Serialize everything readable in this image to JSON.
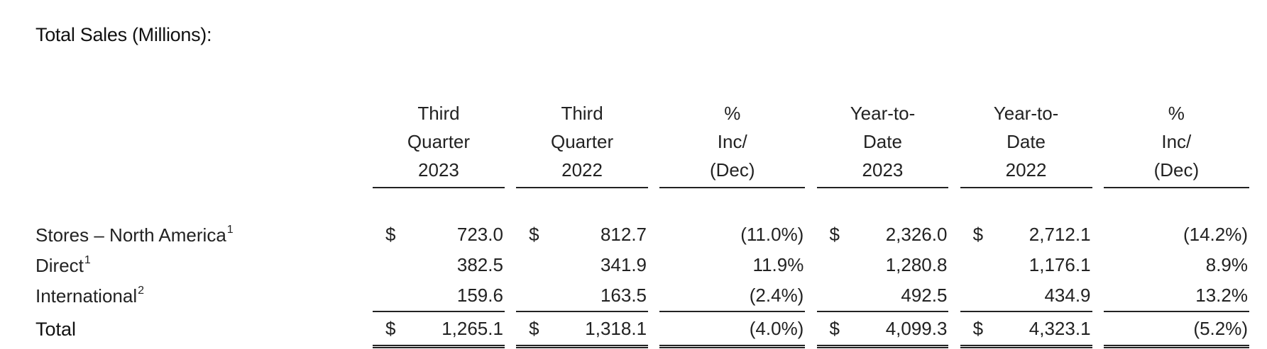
{
  "title": "Total Sales (Millions):",
  "columns": [
    {
      "line1": "Third",
      "line2": "Quarter",
      "line3": "2023"
    },
    {
      "line1": "Third",
      "line2": "Quarter",
      "line3": "2022"
    },
    {
      "line1": "%",
      "line2": "Inc/",
      "line3": "(Dec)"
    },
    {
      "line1": "Year-to-",
      "line2": "Date",
      "line3": "2023"
    },
    {
      "line1": "Year-to-",
      "line2": "Date",
      "line3": "2022"
    },
    {
      "line1": "%",
      "line2": "Inc/",
      "line3": "(Dec)"
    }
  ],
  "rows": [
    {
      "label": "Stores – North America",
      "footnote": "1",
      "dollar_q3_2023": "$",
      "q3_2023": "723.0",
      "dollar_q3_2022": "$",
      "q3_2022": "812.7",
      "q3_change": "(11.0%)",
      "dollar_ytd_2023": "$",
      "ytd_2023": "2,326.0",
      "dollar_ytd_2022": "$",
      "ytd_2022": "2,712.1",
      "ytd_change": "(14.2%)"
    },
    {
      "label": "Direct",
      "footnote": "1",
      "q3_2023": "382.5",
      "q3_2022": "341.9",
      "q3_change": "11.9%",
      "ytd_2023": "1,280.8",
      "ytd_2022": "1,176.1",
      "ytd_change": "8.9%"
    },
    {
      "label": "International",
      "footnote": "2",
      "q3_2023": "159.6",
      "q3_2022": "163.5",
      "q3_change": "(2.4%)",
      "ytd_2023": "492.5",
      "ytd_2022": "434.9",
      "ytd_change": "13.2%"
    }
  ],
  "total": {
    "label": "Total",
    "dollar_q3_2023": "$",
    "q3_2023": "1,265.1",
    "dollar_q3_2022": "$",
    "q3_2022": "1,318.1",
    "q3_change": "(4.0%)",
    "dollar_ytd_2023": "$",
    "ytd_2023": "4,099.3",
    "dollar_ytd_2022": "$",
    "ytd_2022": "4,323.1",
    "ytd_change": "(5.2%)"
  }
}
